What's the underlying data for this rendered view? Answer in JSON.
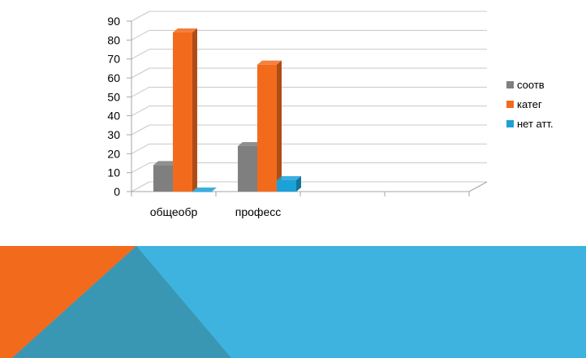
{
  "chart_data": {
    "type": "bar",
    "style": "3d-clustered-column",
    "categories": [
      "общеобр",
      "професс"
    ],
    "series": [
      {
        "name": "соотв",
        "values": [
          14,
          24
        ],
        "color": "#7f7f7f"
      },
      {
        "name": "катег",
        "values": [
          84,
          67
        ],
        "color": "#f26b1d"
      },
      {
        "name": "нет атт.",
        "values": [
          0,
          6
        ],
        "color": "#1ba1d8"
      }
    ],
    "y_ticks": [
      "0",
      "10",
      "20",
      "30",
      "40",
      "50",
      "60",
      "70",
      "80",
      "90"
    ],
    "ylim": [
      0,
      90
    ],
    "grid": true,
    "legend_position": "right",
    "title": "",
    "xlabel": "",
    "ylabel": ""
  },
  "banner": {
    "background_color": "#3fb3e0",
    "orange_color": "#f26b1d",
    "teal_color": "#3a97b4"
  }
}
